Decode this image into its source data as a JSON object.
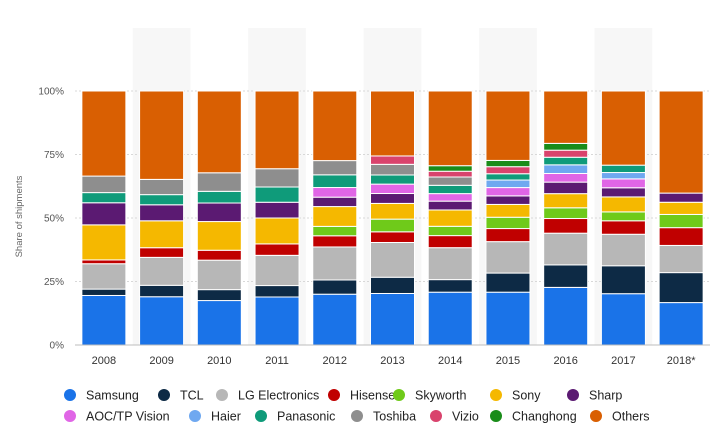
{
  "chart_data": {
    "type": "bar",
    "stacked": true,
    "percent": true,
    "ylabel": "Share of shipments",
    "xlabel": "",
    "ylim": [
      0,
      100
    ],
    "yticks": [
      "0%",
      "25%",
      "50%",
      "75%",
      "100%"
    ],
    "grid": true,
    "legend_position": "bottom",
    "categories": [
      "2008",
      "2009",
      "2010",
      "2011",
      "2012",
      "2013",
      "2014",
      "2015",
      "2016",
      "2017",
      "2018*"
    ],
    "series": [
      {
        "name": "Samsung",
        "color": "#1a73e8",
        "values": [
          19.5,
          19,
          17.5,
          18.9,
          20,
          20.3,
          21,
          21,
          22,
          20.2,
          16.7
        ]
      },
      {
        "name": "TCL",
        "color": "#0d2a45",
        "values": [
          2.5,
          4.5,
          4.3,
          4.5,
          5.6,
          6.4,
          5,
          7.6,
          8.6,
          11,
          11.8
        ]
      },
      {
        "name": "LG Electronics",
        "color": "#b7b7b7",
        "values": [
          10,
          11,
          11.6,
          11.9,
          13,
          13.7,
          12.7,
          12.5,
          12.1,
          12.4,
          10.7
        ]
      },
      {
        "name": "Hisense",
        "color": "#c00000",
        "values": [
          1.5,
          3.8,
          3.9,
          4.5,
          4.4,
          4.2,
          4.8,
          5.2,
          5.6,
          5.3,
          7
        ]
      },
      {
        "name": "Skyworth",
        "color": "#6fca1a",
        "values": [
          0,
          0,
          0,
          0,
          3.7,
          5,
          3.7,
          4.5,
          4.1,
          3.5,
          5.2
        ]
      },
      {
        "name": "Sony",
        "color": "#f5b800",
        "values": [
          13.8,
          10.6,
          11.3,
          10.2,
          7.8,
          6.2,
          6.5,
          5.1,
          5.4,
          5.9,
          4.8
        ]
      },
      {
        "name": "Sharp",
        "color": "#5b1a72",
        "values": [
          8.7,
          6.3,
          7.3,
          6.2,
          3.7,
          3.9,
          3.5,
          3.4,
          4.4,
          3.6,
          3.6
        ]
      },
      {
        "name": "AOC/TP Vision",
        "color": "#e066e6",
        "values": [
          0,
          0,
          0,
          0,
          3.8,
          3.7,
          3,
          3.3,
          3.3,
          3.5,
          0
        ]
      },
      {
        "name": "Haier",
        "color": "#6fa8f0",
        "values": [
          0,
          0,
          0,
          0,
          0,
          0,
          0,
          3,
          3.3,
          2.5,
          0
        ]
      },
      {
        "name": "Panasonic",
        "color": "#0f9b7a",
        "values": [
          4,
          4,
          4.6,
          6,
          5,
          3.6,
          3.3,
          2.5,
          2.9,
          2.9,
          0
        ]
      },
      {
        "name": "Toshiba",
        "color": "#8e8e8e",
        "values": [
          6.5,
          6,
          7.3,
          7.2,
          5.6,
          4.2,
          3.3,
          0,
          0,
          0,
          0
        ]
      },
      {
        "name": "Vizio",
        "color": "#d9436d",
        "values": [
          0,
          0,
          0,
          0,
          0,
          3.3,
          2.3,
          2.8,
          2.7,
          0,
          0
        ]
      },
      {
        "name": "Changhong",
        "color": "#1a8c1a",
        "values": [
          0,
          0,
          0,
          0,
          0,
          0,
          2.2,
          2.5,
          2.6,
          0,
          0
        ]
      },
      {
        "name": "Others",
        "color": "#d95f02",
        "values": [
          33.5,
          34.8,
          32.2,
          30.6,
          27.4,
          25.6,
          29.7,
          27.6,
          20,
          29.2,
          40.2
        ]
      }
    ]
  }
}
